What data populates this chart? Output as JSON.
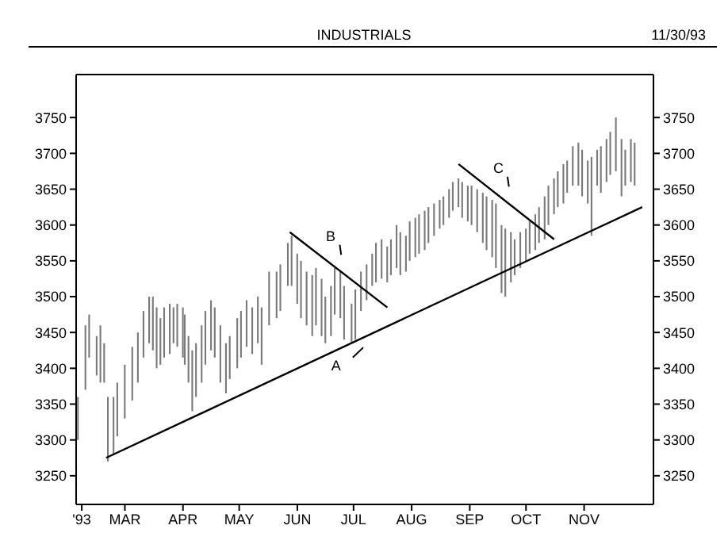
{
  "chart_data": {
    "type": "bar",
    "title": "INDUSTRIALS",
    "annotations": [
      "11/30/93"
    ],
    "xlim": [
      "1993-02-03",
      "1993-12-08"
    ],
    "xticks": [
      {
        "value": "1993-02-06",
        "label": "'93"
      },
      {
        "value": "1993-03-01",
        "label": "MAR"
      },
      {
        "value": "1993-04-01",
        "label": "APR"
      },
      {
        "value": "1993-05-01",
        "label": "MAY"
      },
      {
        "value": "1993-06-01",
        "label": "JUN"
      },
      {
        "value": "1993-07-01",
        "label": "JUL"
      },
      {
        "value": "1993-08-01",
        "label": "AUG"
      },
      {
        "value": "1993-09-01",
        "label": "SEP"
      },
      {
        "value": "1993-10-01",
        "label": "OCT"
      },
      {
        "value": "1993-11-01",
        "label": "NOV"
      }
    ],
    "ylim": [
      3210,
      3810
    ],
    "yticks": [
      3250,
      3300,
      3350,
      3400,
      3450,
      3500,
      3550,
      3600,
      3650,
      3700,
      3750
    ],
    "y2lim": [
      3210,
      3810
    ],
    "y2ticks": [
      3250,
      3300,
      3350,
      3400,
      3450,
      3500,
      3550,
      3600,
      3650,
      3700,
      3750
    ],
    "series": [
      {
        "color": "#7a7a7a",
        "x": [
          "1993-02-04",
          "1993-02-08",
          "1993-02-10",
          "1993-02-14",
          "1993-02-16",
          "1993-02-18",
          "1993-02-20",
          "1993-02-23",
          "1993-02-25",
          "1993-03-01",
          "1993-03-05",
          "1993-03-08",
          "1993-03-11",
          "1993-03-14",
          "1993-03-16",
          "1993-03-18",
          "1993-03-20",
          "1993-03-22",
          "1993-03-25",
          "1993-03-27",
          "1993-03-29",
          "1993-04-01",
          "1993-04-02",
          "1993-04-04",
          "1993-04-06",
          "1993-04-08",
          "1993-04-11",
          "1993-04-13",
          "1993-04-16",
          "1993-04-18",
          "1993-04-21",
          "1993-04-24",
          "1993-04-26",
          "1993-04-30",
          "1993-05-02",
          "1993-05-05",
          "1993-05-08",
          "1993-05-11",
          "1993-05-13",
          "1993-05-17",
          "1993-05-21",
          "1993-05-23",
          "1993-05-27",
          "1993-05-29",
          "1993-06-01",
          "1993-06-03",
          "1993-06-06",
          "1993-06-09",
          "1993-06-11",
          "1993-06-14",
          "1993-06-16",
          "1993-06-19",
          "1993-06-21",
          "1993-06-24",
          "1993-06-26",
          "1993-06-30",
          "1993-07-02",
          "1993-07-05",
          "1993-07-08",
          "1993-07-11",
          "1993-07-13",
          "1993-07-16",
          "1993-07-19",
          "1993-07-21",
          "1993-07-24",
          "1993-07-26",
          "1993-07-29",
          "1993-07-31",
          "1993-08-03",
          "1993-08-05",
          "1993-08-08",
          "1993-08-10",
          "1993-08-13",
          "1993-08-16",
          "1993-08-18",
          "1993-08-21",
          "1993-08-23",
          "1993-08-26",
          "1993-08-28",
          "1993-08-31",
          "1993-09-02",
          "1993-09-05",
          "1993-09-08",
          "1993-09-10",
          "1993-09-13",
          "1993-09-15",
          "1993-09-18",
          "1993-09-20",
          "1993-09-23",
          "1993-09-25",
          "1993-09-28",
          "1993-10-01",
          "1993-10-03",
          "1993-10-06",
          "1993-10-08",
          "1993-10-11",
          "1993-10-13",
          "1993-10-16",
          "1993-10-18",
          "1993-10-21",
          "1993-10-23",
          "1993-10-26",
          "1993-10-29",
          "1993-10-31",
          "1993-11-03",
          "1993-11-05",
          "1993-11-08",
          "1993-11-10",
          "1993-11-13",
          "1993-11-15",
          "1993-11-18",
          "1993-11-21",
          "1993-11-23",
          "1993-11-26",
          "1993-11-28"
        ],
        "base": [
          3300,
          3370,
          3415,
          3390,
          3380,
          3380,
          3270,
          3280,
          3305,
          3330,
          3355,
          3380,
          3415,
          3435,
          3425,
          3400,
          3405,
          3415,
          3420,
          3435,
          3430,
          3415,
          3405,
          3380,
          3340,
          3360,
          3380,
          3405,
          3425,
          3415,
          3380,
          3365,
          3385,
          3400,
          3415,
          3430,
          3420,
          3435,
          3405,
          3460,
          3470,
          3480,
          3515,
          3515,
          3490,
          3470,
          3460,
          3445,
          3460,
          3445,
          3435,
          3445,
          3475,
          3470,
          3440,
          3435,
          3440,
          3480,
          3495,
          3515,
          3520,
          3525,
          3520,
          3530,
          3540,
          3530,
          3535,
          3550,
          3555,
          3560,
          3565,
          3575,
          3585,
          3595,
          3600,
          3610,
          3620,
          3625,
          3610,
          3605,
          3600,
          3590,
          3575,
          3565,
          3555,
          3540,
          3505,
          3500,
          3520,
          3530,
          3540,
          3550,
          3560,
          3565,
          3575,
          3580,
          3600,
          3615,
          3625,
          3630,
          3645,
          3655,
          3655,
          3640,
          3630,
          3585,
          3655,
          3645,
          3660,
          3670,
          3675,
          3640,
          3655,
          3660,
          3655
        ],
        "values": [
          60,
          90,
          60,
          55,
          80,
          55,
          90,
          80,
          75,
          75,
          75,
          70,
          65,
          65,
          75,
          85,
          65,
          70,
          70,
          50,
          60,
          70,
          70,
          65,
          85,
          75,
          80,
          75,
          70,
          70,
          80,
          70,
          60,
          70,
          65,
          65,
          65,
          65,
          80,
          75,
          65,
          65,
          60,
          70,
          70,
          80,
          75,
          85,
          80,
          80,
          65,
          70,
          65,
          65,
          75,
          55,
          70,
          55,
          50,
          45,
          55,
          55,
          50,
          50,
          60,
          60,
          50,
          55,
          55,
          55,
          55,
          50,
          45,
          40,
          40,
          40,
          40,
          40,
          50,
          50,
          55,
          60,
          70,
          75,
          80,
          90,
          95,
          95,
          70,
          50,
          50,
          45,
          45,
          50,
          50,
          60,
          55,
          50,
          50,
          55,
          45,
          55,
          60,
          65,
          60,
          110,
          50,
          65,
          60,
          60,
          75,
          80,
          50,
          60,
          60
        ]
      },
      {
        "type": "line",
        "name": "A",
        "color": "#000000",
        "x": [
          "1993-02-19",
          "1993-12-02"
        ],
        "values": [
          3275,
          3625
        ]
      },
      {
        "type": "line",
        "name": "B",
        "color": "#000000",
        "x": [
          "1993-05-28",
          "1993-07-19"
        ],
        "values": [
          3590,
          3485
        ]
      },
      {
        "type": "line",
        "name": "C",
        "color": "#000000",
        "x": [
          "1993-08-26",
          "1993-10-16"
        ],
        "values": [
          3685,
          3580
        ]
      }
    ]
  }
}
